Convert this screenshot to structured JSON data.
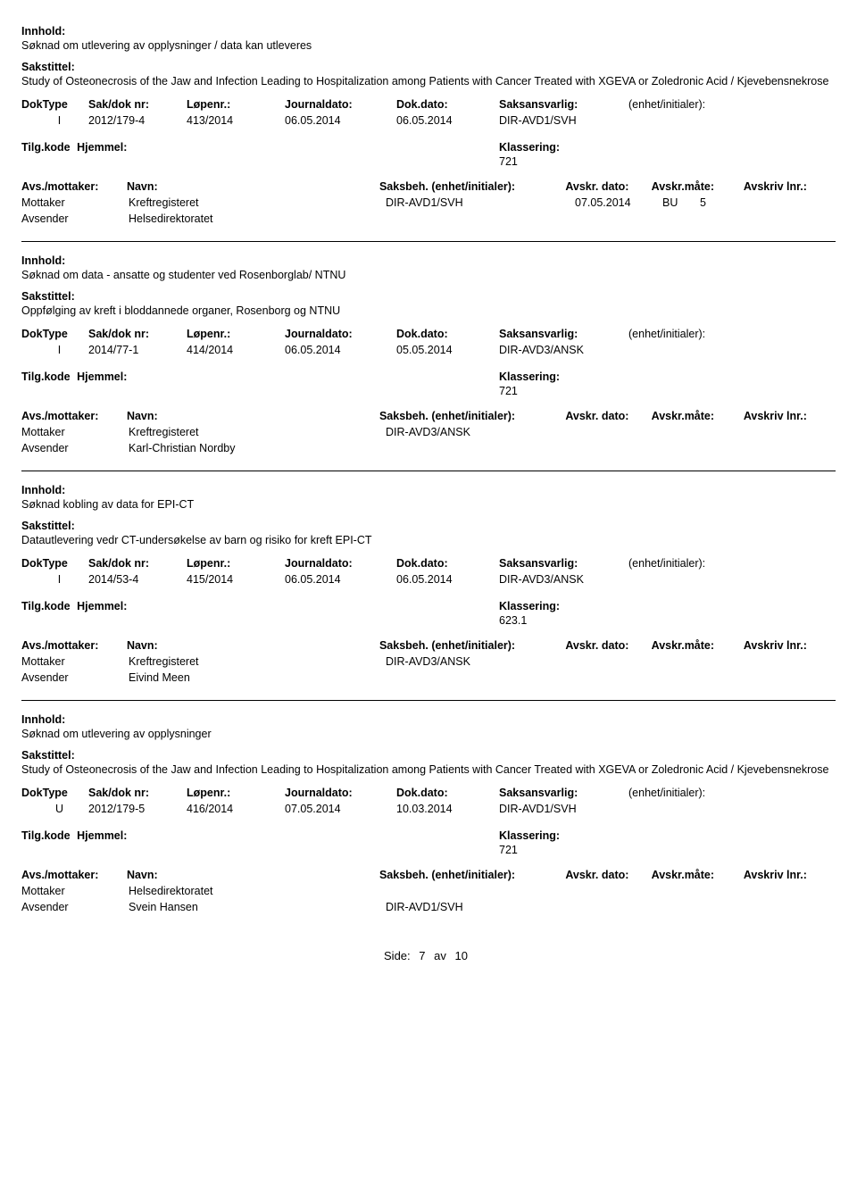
{
  "labels": {
    "innhold": "Innhold:",
    "sakstittel": "Sakstittel:",
    "doktype": "DokType",
    "sakdok": "Sak/dok nr:",
    "lopenr": "Løpenr.:",
    "journaldato": "Journaldato:",
    "dokdato": "Dok.dato:",
    "saksansvarlig": "Saksansvarlig:",
    "enhet": "(enhet/initialer):",
    "tilgkode": "Tilg.kode",
    "hjemmel": "Hjemmel:",
    "klassering": "Klassering:",
    "avsmottaker": "Avs./mottaker:",
    "navn": "Navn:",
    "saksbeh": "Saksbeh.",
    "saksbeh_enhet": "(enhet/initialer):",
    "avskrdato": "Avskr. dato:",
    "avskrmate": "Avskr.måte:",
    "avskrlnr": "Avskriv lnr.:",
    "mottaker": "Mottaker",
    "avsender": "Avsender",
    "side": "Side:",
    "av": "av"
  },
  "footer": {
    "page": "7",
    "total": "10"
  },
  "entries": [
    {
      "innhold": "Søknad om utlevering av opplysninger / data kan utleveres",
      "sakstittel": "Study of Osteonecrosis of the Jaw and Infection Leading to Hospitalization among Patients with Cancer Treated with XGEVA or Zoledronic Acid / Kjevebensnekrose",
      "doktype": "I",
      "sakdok": "2012/179-4",
      "lopenr": "413/2014",
      "journaldato": "06.05.2014",
      "dokdato": "06.05.2014",
      "saksansvarlig": "DIR-AVD1/SVH",
      "klassering": "721",
      "parties": [
        {
          "role": "Mottaker",
          "navn": "Kreftregisteret",
          "saksbeh": "DIR-AVD1/SVH",
          "avskrdato": "07.05.2014",
          "avskrmate": "BU",
          "avskrlnr": "5"
        },
        {
          "role": "Avsender",
          "navn": "Helsedirektoratet",
          "saksbeh": "",
          "avskrdato": "",
          "avskrmate": "",
          "avskrlnr": ""
        }
      ]
    },
    {
      "innhold": "Søknad om data - ansatte og studenter ved Rosenborglab/ NTNU",
      "sakstittel": "Oppfølging av kreft i bloddannede organer, Rosenborg og NTNU",
      "doktype": "I",
      "sakdok": "2014/77-1",
      "lopenr": "414/2014",
      "journaldato": "06.05.2014",
      "dokdato": "05.05.2014",
      "saksansvarlig": "DIR-AVD3/ANSK",
      "klassering": "721",
      "parties": [
        {
          "role": "Mottaker",
          "navn": "Kreftregisteret",
          "saksbeh": "DIR-AVD3/ANSK",
          "avskrdato": "",
          "avskrmate": "",
          "avskrlnr": ""
        },
        {
          "role": "Avsender",
          "navn": "Karl-Christian Nordby",
          "saksbeh": "",
          "avskrdato": "",
          "avskrmate": "",
          "avskrlnr": ""
        }
      ]
    },
    {
      "innhold": "Søknad kobling av data for EPI-CT",
      "sakstittel": "Datautlevering vedr CT-undersøkelse av barn og risiko for kreft EPI-CT",
      "doktype": "I",
      "sakdok": "2014/53-4",
      "lopenr": "415/2014",
      "journaldato": "06.05.2014",
      "dokdato": "06.05.2014",
      "saksansvarlig": "DIR-AVD3/ANSK",
      "klassering": "623.1",
      "parties": [
        {
          "role": "Mottaker",
          "navn": "Kreftregisteret",
          "saksbeh": "DIR-AVD3/ANSK",
          "avskrdato": "",
          "avskrmate": "",
          "avskrlnr": ""
        },
        {
          "role": "Avsender",
          "navn": "Eivind Meen",
          "saksbeh": "",
          "avskrdato": "",
          "avskrmate": "",
          "avskrlnr": ""
        }
      ]
    },
    {
      "innhold": "Søknad om utlevering av opplysninger",
      "sakstittel": "Study of Osteonecrosis of the Jaw and Infection Leading to Hospitalization among Patients with Cancer Treated with XGEVA or Zoledronic Acid / Kjevebensnekrose",
      "doktype": "U",
      "sakdok": "2012/179-5",
      "lopenr": "416/2014",
      "journaldato": "07.05.2014",
      "dokdato": "10.03.2014",
      "saksansvarlig": "DIR-AVD1/SVH",
      "klassering": "721",
      "parties": [
        {
          "role": "Mottaker",
          "navn": "Helsedirektoratet",
          "saksbeh": "",
          "avskrdato": "",
          "avskrmate": "",
          "avskrlnr": ""
        },
        {
          "role": "Avsender",
          "navn": "Svein Hansen",
          "saksbeh": "DIR-AVD1/SVH",
          "avskrdato": "",
          "avskrmate": "",
          "avskrlnr": ""
        }
      ]
    }
  ]
}
